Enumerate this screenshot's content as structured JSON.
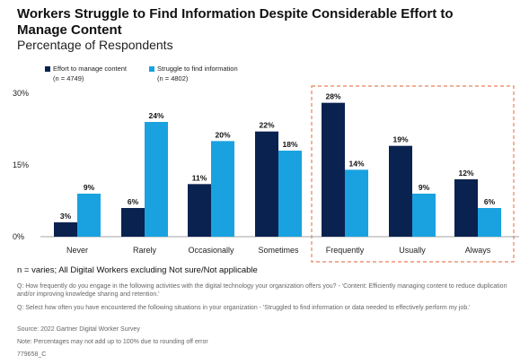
{
  "header": {
    "title": "Workers Struggle to Find Information Despite Considerable Effort to Manage Content",
    "subtitle": "Percentage of Respondents"
  },
  "chart_data": {
    "type": "bar",
    "categories": [
      "Never",
      "Rarely",
      "Occasionally",
      "Sometimes",
      "Frequently",
      "Usually",
      "Always"
    ],
    "series": [
      {
        "name": "Effort to manage content",
        "sample": "(n = 4749)",
        "color": "#0a2250",
        "values": [
          3,
          6,
          11,
          22,
          28,
          19,
          12
        ]
      },
      {
        "name": "Struggle to find information",
        "sample": "(n = 4802)",
        "color": "#1aa2e0",
        "values": [
          9,
          24,
          20,
          18,
          14,
          9,
          6
        ]
      }
    ],
    "data_labels": [
      [
        "3%",
        "6%",
        "11%",
        "22%",
        "28%",
        "19%",
        "12%"
      ],
      [
        "9%",
        "24%",
        "20%",
        "18%",
        "14%",
        "9%",
        "6%"
      ]
    ],
    "yticks": [
      0,
      15,
      30
    ],
    "ytick_labels": [
      "0%",
      "15%",
      "30%"
    ],
    "ylim": [
      0,
      30
    ],
    "grid": false,
    "legend_position": "top-left",
    "highlight": {
      "categories": [
        "Frequently",
        "Usually",
        "Always"
      ],
      "style": "dashed box",
      "color": "#e8815a"
    }
  },
  "footer": {
    "note_main": "n = varies; All Digital Workers excluding Not sure/Not applicable",
    "q1": "Q: How frequently do you engage in the following activities with the digital technology your organization offers you? - 'Content: Efficiently managing content to reduce duplication and/or improving knowledge sharing and retention.'",
    "q2": "Q: Select how often you have encountered the following situations in your organization - 'Struggled to find information or data needed to effectively perform my job.'",
    "source": "Source: 2022 Gartner Digital Worker Survey",
    "note": "Note: Percentages may not add up to 100% due to rounding off error",
    "id": "779658_C"
  }
}
